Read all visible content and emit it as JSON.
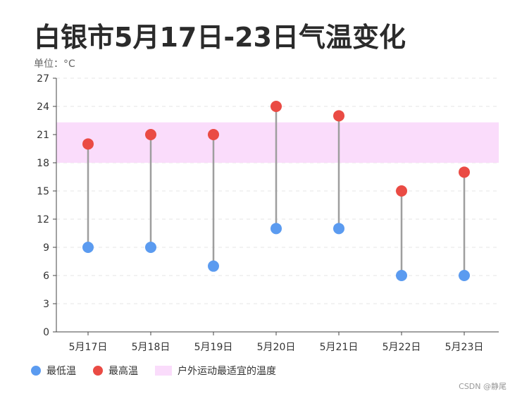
{
  "title": "白银市5月17日-23日气温变化",
  "unit_label": "单位：°C",
  "colors": {
    "low": "#5b9bf0",
    "high": "#ea4b44",
    "band": "#fadcfb",
    "stem": "#9e9e9e",
    "grid": "#e6e6e6",
    "axis": "#444444"
  },
  "chart_data": {
    "type": "dumbbell",
    "categories": [
      "5月17日",
      "5月18日",
      "5月19日",
      "5月20日",
      "5月21日",
      "5月22日",
      "5月23日"
    ],
    "series": [
      {
        "name": "最低温",
        "values": [
          9,
          9,
          7,
          11,
          11,
          6,
          6
        ]
      },
      {
        "name": "最高温",
        "values": [
          20,
          21,
          21,
          24,
          23,
          15,
          17
        ]
      }
    ],
    "band": {
      "name": "户外运动最适宜的温度",
      "from": 18,
      "to": 22.3
    },
    "ylim": [
      0,
      27
    ],
    "yticks": [
      0,
      3,
      6,
      9,
      12,
      15,
      18,
      21,
      24,
      27
    ],
    "grid": "horizontal dashed",
    "legend": "bottom-left"
  },
  "legend": {
    "low": "最低温",
    "high": "最高温",
    "band": "户外运动最适宜的温度"
  },
  "watermark": "CSDN @静尾"
}
